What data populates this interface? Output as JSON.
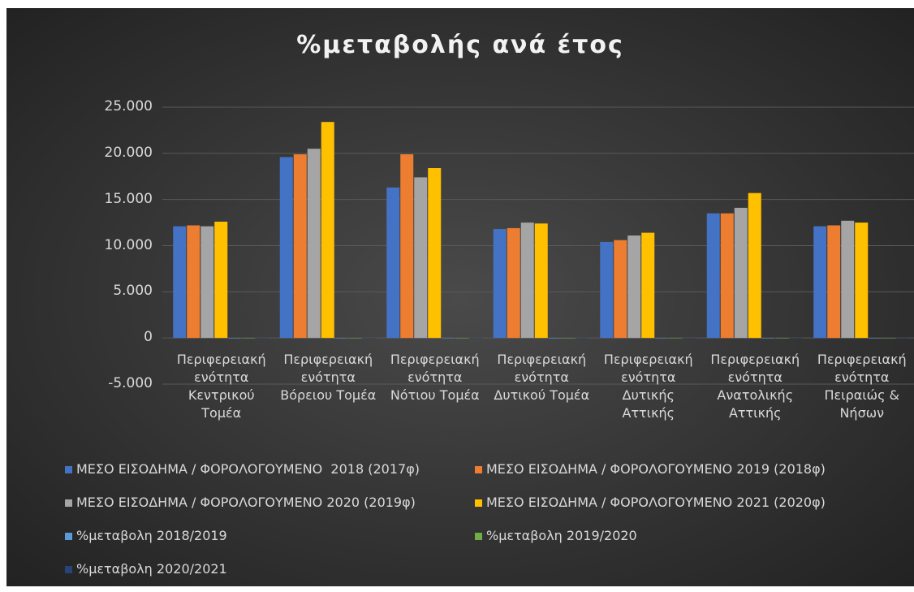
{
  "chart_data": {
    "type": "bar",
    "title": "%μεταβολής ανά έτος",
    "categories": [
      "Περιφερειακή ενότητα Κεντρικού Τομέα",
      "Περιφερειακή ενότητα Βόρειου Τομέα",
      "Περιφερειακή ενότητα Νότιου Τομέα",
      "Περιφερειακή ενότητα Δυτικού Τομέα",
      "Περιφερειακή ενότητα Δυτικής Αττικής",
      "Περιφερειακή ενότητα Ανατολικής Αττικής",
      "Περιφερειακή ενότητα Πειραιώς & Νήσων"
    ],
    "series": [
      {
        "name": "ΜΕΣΟ ΕΙΣΟΔΗΜΑ / ΦΟΡΟΛΟΓΟΥΜΕΝΟ  2018 (2017φ)",
        "color": "#4472c4",
        "values": [
          12100,
          19600,
          16300,
          11800,
          10400,
          13500,
          12100
        ]
      },
      {
        "name": "ΜΕΣΟ ΕΙΣΟΔΗΜΑ / ΦΟΡΟΛΟΓΟΥΜΕΝΟ 2019 (2018φ)",
        "color": "#ed7d31",
        "values": [
          12200,
          19900,
          19900,
          11900,
          10600,
          13500,
          12200
        ]
      },
      {
        "name": "ΜΕΣΟ ΕΙΣΟΔΗΜΑ / ΦΟΡΟΛΟΓΟΥΜΕΝΟ 2020 (2019φ)",
        "color": "#a5a5a5",
        "values": [
          12100,
          20500,
          17400,
          12500,
          11100,
          14100,
          12700
        ]
      },
      {
        "name": "ΜΕΣΟ ΕΙΣΟΔΗΜΑ / ΦΟΡΟΛΟΓΟΥΜΕΝΟ 2021 (2020φ)",
        "color": "#ffc000",
        "values": [
          12600,
          23400,
          18400,
          12400,
          11400,
          15700,
          12500
        ]
      },
      {
        "name": "%μεταβολη 2018/2019",
        "color": "#5b9bd5",
        "values": [
          1,
          2,
          22,
          1,
          2,
          0,
          1
        ]
      },
      {
        "name": "%μεταβολη 2019/2020",
        "color": "#70ad47",
        "values": [
          -1,
          3,
          -13,
          5,
          5,
          4,
          4
        ]
      },
      {
        "name": "%μεταβολη 2020/2021",
        "color": "#264478",
        "values": [
          4,
          14,
          6,
          -1,
          3,
          11,
          -2
        ]
      }
    ],
    "ylim": [
      -5000,
      25000
    ],
    "yticks": [
      {
        "value": -5000,
        "label": "-5.000"
      },
      0,
      {
        "value": 5000,
        "label": "5.000"
      },
      {
        "value": 10000,
        "label": "10.000"
      },
      {
        "value": 15000,
        "label": "15.000"
      },
      {
        "value": 20000,
        "label": "20.000"
      },
      {
        "value": 25000,
        "label": "25.000"
      }
    ],
    "grid": true
  }
}
